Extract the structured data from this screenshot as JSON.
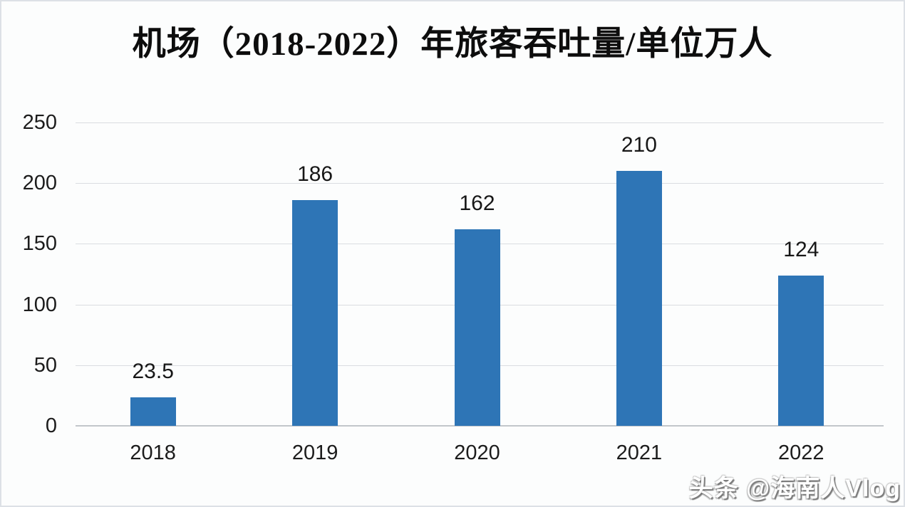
{
  "title": "机场（2018-2022）年旅客吞吐量/单位万人",
  "watermark": "头条 @海南人Vlog",
  "colors": {
    "bar": "#2E75B6",
    "gridline": "#dadde1",
    "axis_line": "#c2c6cb",
    "text": "#1c1c1c",
    "background": "#fcfdfd"
  },
  "chart_data": {
    "type": "bar",
    "title": "机场（2018-2022）年旅客吞吐量/单位万人",
    "categories": [
      "2018",
      "2019",
      "2020",
      "2021",
      "2022"
    ],
    "values": [
      23.5,
      186,
      162,
      210,
      124
    ],
    "value_labels": [
      "23.5",
      "186",
      "162",
      "210",
      "124"
    ],
    "xlabel": "",
    "ylabel": "",
    "ylim": [
      0,
      250
    ],
    "yticks": [
      0,
      50,
      100,
      150,
      200,
      250
    ],
    "grid": true,
    "legend": "none",
    "bar_color": "#2E75B6"
  }
}
